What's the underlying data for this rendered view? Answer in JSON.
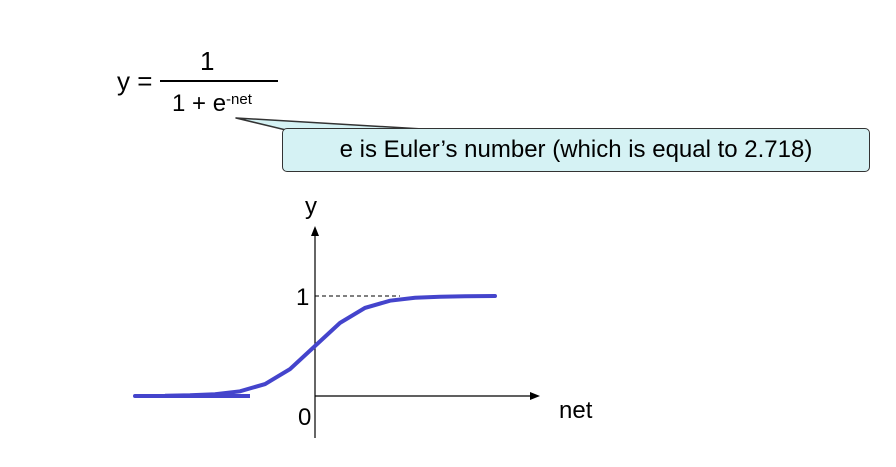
{
  "formula": {
    "lhs": "y =",
    "numerator": "1",
    "denominator_base": "1 + e",
    "denominator_exponent": "-net"
  },
  "callout": {
    "text": "e is Euler’s number (which is equal to 2.718)",
    "background_color": "#d5f2f4"
  },
  "chart_data": {
    "type": "line",
    "x_axis_label": "net",
    "y_axis_label": "y",
    "origin_label": "0",
    "y_tick_label": "1",
    "asymptote_value": 1,
    "line_color": "#4444cc",
    "series": [
      {
        "function": "1 / (1 + e^-net)",
        "x": [
          -6,
          -5,
          -4,
          -3,
          -2,
          -1,
          0,
          1,
          2,
          3,
          4,
          5,
          6
        ],
        "y": [
          0.0025,
          0.0067,
          0.018,
          0.047,
          0.119,
          0.269,
          0.5,
          0.731,
          0.881,
          0.953,
          0.982,
          0.993,
          0.9975
        ]
      }
    ]
  }
}
